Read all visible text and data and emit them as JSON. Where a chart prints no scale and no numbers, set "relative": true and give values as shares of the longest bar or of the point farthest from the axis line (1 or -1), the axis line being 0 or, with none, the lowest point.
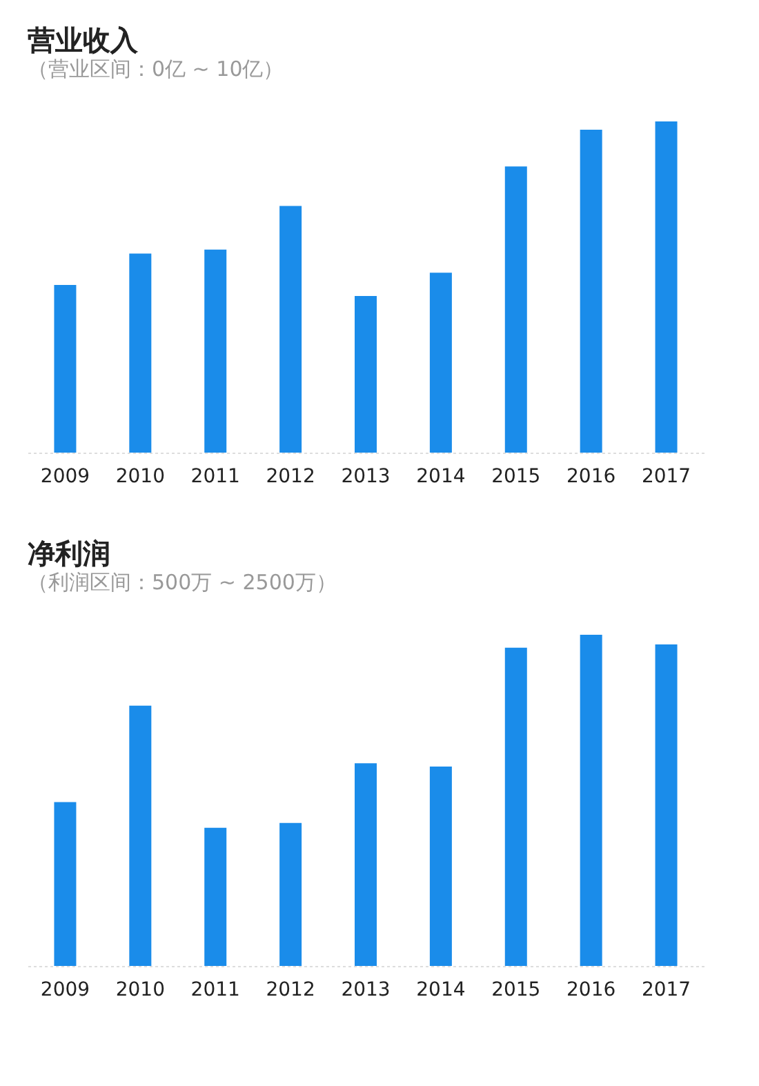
{
  "chart_data": [
    {
      "type": "bar",
      "title": "营业收入",
      "subtitle": "（营业区间：0亿 ~ 10亿）",
      "relative": true,
      "categories": [
        "2009",
        "2010",
        "2011",
        "2012",
        "2013",
        "2014",
        "2015",
        "2016",
        "2017"
      ],
      "values": [
        0.506,
        0.601,
        0.613,
        0.745,
        0.473,
        0.543,
        0.864,
        0.975,
        1
      ],
      "color": "#1a8cea"
    },
    {
      "type": "bar",
      "title": "净利润",
      "subtitle": "（利润区间：500万 ~ 2500万）",
      "relative": true,
      "categories": [
        "2009",
        "2010",
        "2011",
        "2012",
        "2013",
        "2014",
        "2015",
        "2016",
        "2017"
      ],
      "values": [
        0.495,
        0.786,
        0.417,
        0.432,
        0.612,
        0.602,
        0.961,
        1,
        0.971
      ],
      "color": "#1a8cea"
    }
  ]
}
